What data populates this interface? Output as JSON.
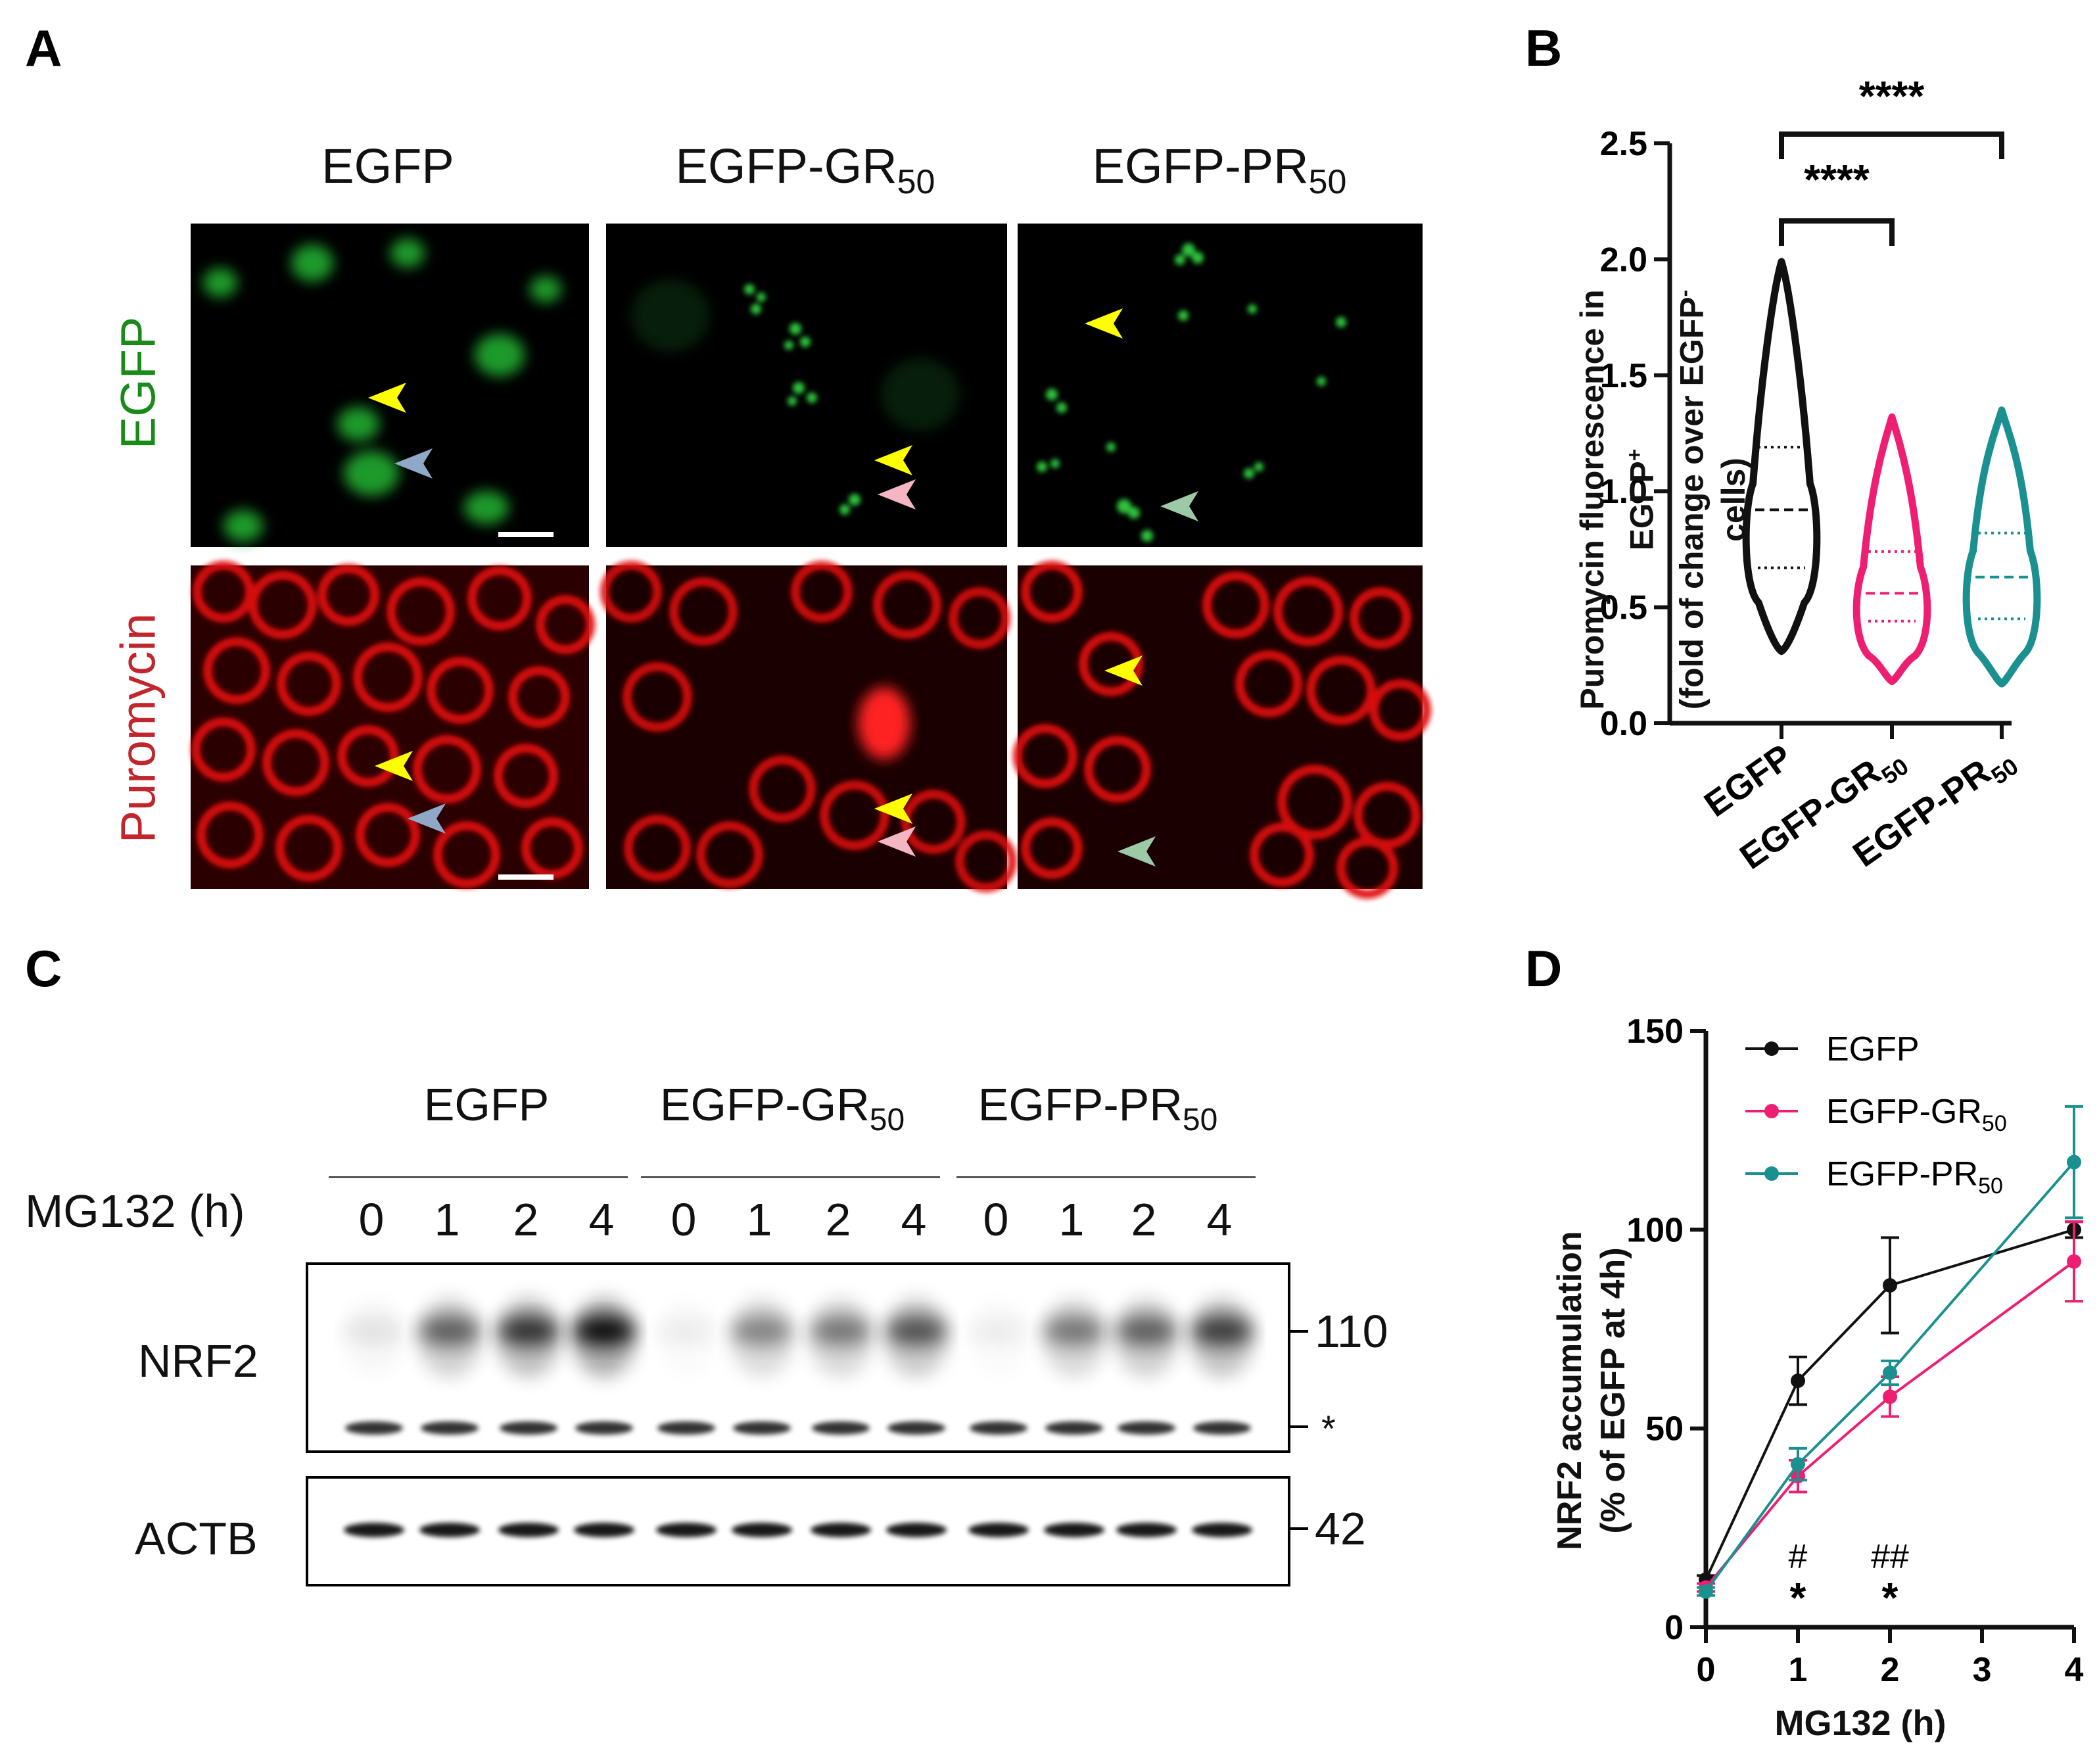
{
  "panel_labels": {
    "a": "A",
    "b": "B",
    "c": "C",
    "d": "D"
  },
  "panel_a": {
    "columns": [
      {
        "main": "EGFP",
        "sub": ""
      },
      {
        "main": "EGFP-GR",
        "sub": "50"
      },
      {
        "main": "EGFP-PR",
        "sub": "50"
      }
    ],
    "rows": [
      "EGFP",
      "Puromycin"
    ],
    "colors": {
      "egfp": "#1a8a1a",
      "puromycin": "#c0262c",
      "arrow_yellow": "#ffff00",
      "arrow_blue": "#8fa8c8",
      "arrow_pink": "#f4b6c2",
      "arrow_green": "#9cc9a6"
    }
  },
  "panel_c": {
    "groups": [
      {
        "main": "EGFP",
        "sub": ""
      },
      {
        "main": "EGFP-GR",
        "sub": "50"
      },
      {
        "main": "EGFP-PR",
        "sub": "50"
      }
    ],
    "time_label": "MG132 (h)",
    "times": [
      "0",
      "1",
      "2",
      "4",
      "0",
      "1",
      "2",
      "4",
      "0",
      "1",
      "2",
      "4"
    ],
    "blots": [
      {
        "name": "NRF2",
        "markers": [
          "110",
          "*"
        ]
      },
      {
        "name": "ACTB",
        "markers": [
          "42"
        ]
      }
    ]
  },
  "chart_data": [
    {
      "type": "violin",
      "ylabel_line1": "Puromycin fluorescence in EGFP",
      "ylabel_sup1": "+",
      "ylabel_line2": "(fold of change over EGFP",
      "ylabel_sup2": "-",
      "ylabel_line2_end": " cells)",
      "ylim": [
        0,
        2.5
      ],
      "yticks": [
        "0.0",
        "0.5",
        "1.0",
        "1.5",
        "2.0",
        "2.5"
      ],
      "categories": [
        {
          "main": "EGFP",
          "sub": ""
        },
        {
          "main": "EGFP-GR",
          "sub": "50"
        },
        {
          "main": "EGFP-PR",
          "sub": "50"
        }
      ],
      "series": [
        {
          "color": "#111111",
          "min": 0.31,
          "max": 1.99,
          "q1": 0.67,
          "median": 0.92,
          "q3": 1.19
        },
        {
          "color": "#ee1f72",
          "min": 0.18,
          "max": 1.32,
          "q1": 0.44,
          "median": 0.56,
          "q3": 0.74
        },
        {
          "color": "#1a9090",
          "min": 0.17,
          "max": 1.35,
          "q1": 0.45,
          "median": 0.63,
          "q3": 0.82
        }
      ],
      "significance": [
        {
          "from": "EGFP",
          "to": "EGFP-GR50",
          "label": "****"
        },
        {
          "from": "EGFP",
          "to": "EGFP-PR50",
          "label": "****"
        }
      ]
    },
    {
      "type": "line",
      "xlabel": "MG132 (h)",
      "ylabel_line1": "NRF2 accumulation",
      "ylabel_line2": "(% of EGFP at 4h)",
      "x": [
        0,
        1,
        2,
        4
      ],
      "xticks": [
        "0",
        "1",
        "2",
        "3",
        "4"
      ],
      "ylim": [
        0,
        150
      ],
      "yticks": [
        "0",
        "50",
        "100",
        "150"
      ],
      "series": [
        {
          "name": "EGFP",
          "sub": "",
          "color": "#111111",
          "values": [
            12,
            62,
            86,
            100
          ],
          "errors": [
            1,
            6,
            12,
            2
          ]
        },
        {
          "name": "EGFP-GR",
          "sub": "50",
          "color": "#ee1f72",
          "values": [
            10,
            38,
            58,
            92
          ],
          "errors": [
            1,
            4,
            5,
            10
          ]
        },
        {
          "name": "EGFP-PR",
          "sub": "50",
          "color": "#1a9090",
          "values": [
            9,
            41,
            64,
            117
          ],
          "errors": [
            1,
            4,
            3,
            14
          ]
        }
      ],
      "annotations": [
        {
          "x": 1,
          "hash": "#",
          "star": "*"
        },
        {
          "x": 2,
          "hash": "##",
          "star": "*"
        }
      ]
    }
  ]
}
